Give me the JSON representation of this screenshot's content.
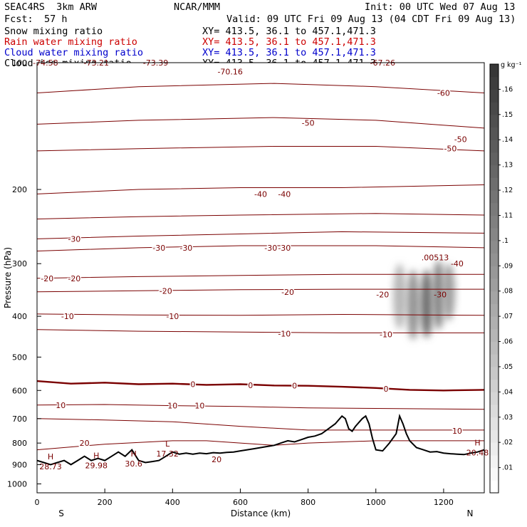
{
  "header": {
    "model": "SEAC4RS  3km ARW",
    "org": "NCAR/MMM",
    "init": "Init: 00 UTC Wed 07 Aug 13",
    "fcst_label": "Fcst:",
    "fcst_value": "57 h",
    "valid": "Valid: 09 UTC Fri 09 Aug 13 (04 CDT Fri 09 Aug 13)"
  },
  "fields": [
    {
      "name": "Snow mixing ratio",
      "xy": "XY= 413.5, 36.1 to 457.1,471.3",
      "color": "#000000"
    },
    {
      "name": "Rain water mixing ratio",
      "xy": "XY= 413.5, 36.1 to 457.1,471.3",
      "color": "#cc0000"
    },
    {
      "name": "Cloud water mixing ratio",
      "xy": "XY= 413.5, 36.1 to 457.1,471.3",
      "color": "#0000cc"
    },
    {
      "name": "Cloud ice mixing ratio",
      "xy": "XY= 413.5, 36.1 to 457.1,471.3",
      "color": "#000000"
    }
  ],
  "colors": {
    "contour": "#7a0000",
    "zero_contour": "#7a0000",
    "terrain": "#000000"
  },
  "chart_data": {
    "type": "cross-section",
    "xlabel": "Distance (km)",
    "ylabel": "Pressure (hPa)",
    "xlim": [
      0,
      1320
    ],
    "ylim": [
      1050,
      100
    ],
    "y_scale": "log",
    "x_ticks": [
      0,
      200,
      400,
      600,
      800,
      1000,
      1200
    ],
    "y_ticks": [
      100,
      200,
      300,
      400,
      500,
      600,
      700,
      800,
      900,
      1000
    ],
    "x_end_labels": {
      "left": "S",
      "right": "N"
    },
    "colorbar": {
      "units": "g kg⁻¹",
      "ticks": [
        ".01",
        ".02",
        ".03",
        ".04",
        ".05",
        ".06",
        ".07",
        ".08",
        ".09",
        ".1",
        ".11",
        ".12",
        ".13",
        ".14",
        ".15",
        ".16"
      ],
      "range": [
        0,
        0.17
      ]
    },
    "temperature_contours": [
      {
        "level": -60,
        "p": [
          [
            0,
            118
          ],
          [
            300,
            114
          ],
          [
            700,
            112
          ],
          [
            1000,
            114
          ],
          [
            1320,
            118
          ]
        ],
        "labels": [
          [
            1200,
            118
          ]
        ]
      },
      {
        "level": -50,
        "p": [
          [
            0,
            140
          ],
          [
            300,
            137
          ],
          [
            700,
            135
          ],
          [
            1000,
            137
          ],
          [
            1320,
            143
          ]
        ],
        "labels": [
          [
            800,
            139
          ],
          [
            1250,
            152
          ]
        ]
      },
      {
        "level": -50,
        "p": [
          [
            0,
            162
          ],
          [
            300,
            160
          ],
          [
            700,
            158
          ],
          [
            1000,
            158
          ],
          [
            1320,
            162
          ]
        ],
        "labels": [
          [
            1220,
            160
          ]
        ]
      },
      {
        "level": -40,
        "p": [
          [
            0,
            205
          ],
          [
            300,
            200
          ],
          [
            600,
            198
          ],
          [
            900,
            198
          ],
          [
            1320,
            195
          ]
        ],
        "labels": [
          [
            660,
            205
          ],
          [
            730,
            205
          ]
        ]
      },
      {
        "level": -40,
        "p": [
          [
            0,
            235
          ],
          [
            300,
            232
          ],
          [
            600,
            230
          ],
          [
            1000,
            228
          ],
          [
            1320,
            230
          ]
        ],
        "labels": []
      },
      {
        "level": -30,
        "p": [
          [
            0,
            262
          ],
          [
            300,
            258
          ],
          [
            600,
            255
          ],
          [
            900,
            252
          ],
          [
            1320,
            254
          ]
        ],
        "labels": [
          [
            110,
            262
          ]
        ]
      },
      {
        "level": -30,
        "p": [
          [
            0,
            280
          ],
          [
            300,
            275
          ],
          [
            600,
            272
          ],
          [
            1000,
            272
          ],
          [
            1320,
            275
          ]
        ],
        "labels": [
          [
            360,
            275
          ],
          [
            440,
            275
          ],
          [
            690,
            275
          ],
          [
            730,
            275
          ]
        ]
      },
      {
        "level": -20,
        "p": [
          [
            0,
            325
          ],
          [
            300,
            322
          ],
          [
            600,
            320
          ],
          [
            900,
            318
          ],
          [
            1320,
            318
          ]
        ],
        "labels": [
          [
            30,
            325
          ],
          [
            110,
            325
          ]
        ]
      },
      {
        "level": -20,
        "p": [
          [
            0,
            350
          ],
          [
            300,
            348
          ],
          [
            600,
            346
          ],
          [
            900,
            345
          ],
          [
            1320,
            345
          ]
        ],
        "labels": [
          [
            380,
            348
          ],
          [
            740,
            350
          ],
          [
            1020,
            355
          ]
        ]
      },
      {
        "level": -10,
        "p": [
          [
            0,
            395
          ],
          [
            300,
            397
          ],
          [
            600,
            398
          ],
          [
            900,
            396
          ],
          [
            1320,
            398
          ]
        ],
        "labels": [
          [
            90,
            400
          ],
          [
            400,
            400
          ]
        ]
      },
      {
        "level": -10,
        "p": [
          [
            0,
            430
          ],
          [
            300,
            434
          ],
          [
            600,
            436
          ],
          [
            900,
            438
          ],
          [
            1320,
            438
          ]
        ],
        "labels": [
          [
            730,
            440
          ],
          [
            1030,
            442
          ]
        ]
      },
      {
        "level": 0,
        "p": [
          [
            0,
            570
          ],
          [
            100,
            578
          ],
          [
            200,
            575
          ],
          [
            300,
            580
          ],
          [
            400,
            578
          ],
          [
            500,
            582
          ],
          [
            600,
            580
          ],
          [
            700,
            584
          ],
          [
            800,
            585
          ],
          [
            900,
            588
          ],
          [
            1000,
            592
          ],
          [
            1100,
            598
          ],
          [
            1200,
            600
          ],
          [
            1320,
            598
          ]
        ],
        "labels": [
          [
            460,
            580
          ],
          [
            630,
            583
          ],
          [
            760,
            585
          ],
          [
            1030,
            595
          ]
        ],
        "bold": true
      },
      {
        "level": 10,
        "p": [
          [
            0,
            650
          ],
          [
            200,
            648
          ],
          [
            400,
            652
          ],
          [
            600,
            655
          ],
          [
            800,
            660
          ],
          [
            1000,
            662
          ],
          [
            1320,
            665
          ]
        ],
        "labels": [
          [
            70,
            650
          ],
          [
            400,
            652
          ],
          [
            480,
            652
          ]
        ]
      },
      {
        "level": 10,
        "p": [
          [
            0,
            700
          ],
          [
            200,
            705
          ],
          [
            400,
            712
          ],
          [
            600,
            730
          ],
          [
            800,
            745
          ],
          [
            1000,
            745
          ],
          [
            1320,
            745
          ]
        ],
        "labels": [
          [
            1240,
            748
          ]
        ]
      },
      {
        "level": 20,
        "p": [
          [
            0,
            830
          ],
          [
            200,
            805
          ],
          [
            400,
            790
          ],
          [
            500,
            790
          ],
          [
            600,
            800
          ],
          [
            700,
            810
          ],
          [
            800,
            800
          ],
          [
            1000,
            790
          ],
          [
            1320,
            790
          ]
        ],
        "labels": [
          [
            140,
            800
          ]
        ]
      }
    ],
    "terrain": {
      "distance_km": [
        0,
        20,
        40,
        60,
        80,
        100,
        120,
        140,
        160,
        180,
        200,
        220,
        240,
        260,
        280,
        300,
        320,
        340,
        360,
        380,
        400,
        420,
        440,
        460,
        480,
        500,
        520,
        540,
        560,
        580,
        600,
        620,
        640,
        660,
        680,
        700,
        720,
        740,
        760,
        780,
        800,
        820,
        840,
        860,
        880,
        900,
        910,
        920,
        930,
        940,
        960,
        970,
        980,
        990,
        1000,
        1020,
        1040,
        1060,
        1070,
        1080,
        1090,
        1100,
        1120,
        1140,
        1160,
        1180,
        1200,
        1220,
        1240,
        1260,
        1280,
        1300,
        1320
      ],
      "pressure_hpa": [
        880,
        890,
        900,
        890,
        880,
        900,
        880,
        860,
        880,
        870,
        880,
        860,
        840,
        860,
        830,
        880,
        890,
        885,
        880,
        860,
        840,
        850,
        845,
        850,
        845,
        848,
        843,
        845,
        842,
        840,
        835,
        830,
        825,
        820,
        815,
        810,
        800,
        790,
        795,
        785,
        775,
        770,
        760,
        740,
        720,
        690,
        700,
        740,
        750,
        730,
        700,
        690,
        720,
        780,
        830,
        835,
        800,
        760,
        690,
        720,
        760,
        790,
        820,
        830,
        840,
        838,
        845,
        848,
        850,
        852,
        845,
        840,
        830
      ],
      "annotations": [
        {
          "type": "H",
          "x": 40,
          "p": 895,
          "text": "28.73"
        },
        {
          "type": "H",
          "x": 175,
          "p": 890,
          "text": "29.98"
        },
        {
          "type": "H",
          "x": 285,
          "p": 882,
          "text": "30.6"
        },
        {
          "type": "L",
          "x": 385,
          "p": 835,
          "text": "17.32"
        },
        {
          "type": "H",
          "x": 1300,
          "p": 830,
          "text": "20.48"
        }
      ]
    },
    "extra_labels": [
      {
        "x": 25,
        "p": 100,
        "text": "-74.58"
      },
      {
        "x": 175,
        "p": 100,
        "text": "-73.21"
      },
      {
        "x": 350,
        "p": 100,
        "text": "-73.39"
      },
      {
        "x": 570,
        "p": 105,
        "text": "-70.16"
      },
      {
        "x": 1020,
        "p": 100,
        "text": "-67.26"
      },
      {
        "x": 1175,
        "p": 290,
        "text": ".00513"
      },
      {
        "x": 1190,
        "p": 355,
        "text": "-30"
      },
      {
        "x": 1240,
        "p": 300,
        "text": "-40"
      },
      {
        "x": 530,
        "p": 875,
        "text": "20"
      }
    ],
    "precip_blobs": [
      {
        "x": 1070,
        "p_top": 300,
        "p_bot": 430,
        "intensity": 0.06
      },
      {
        "x": 1110,
        "p_top": 310,
        "p_bot": 455,
        "intensity": 0.09
      },
      {
        "x": 1150,
        "p_top": 310,
        "p_bot": 450,
        "intensity": 0.12
      },
      {
        "x": 1185,
        "p_top": 295,
        "p_bot": 430,
        "intensity": 0.1
      },
      {
        "x": 1215,
        "p_top": 300,
        "p_bot": 410,
        "intensity": 0.08
      }
    ]
  }
}
